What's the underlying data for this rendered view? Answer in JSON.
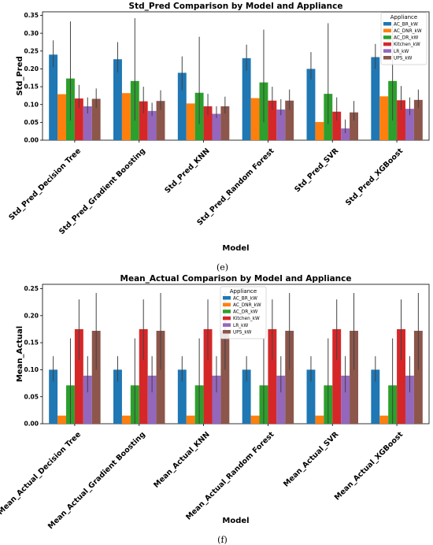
{
  "palette": {
    "AC_BR_kW": "#1f77b4",
    "AC_DNR_kW": "#ff7f0e",
    "AC_DR_kW": "#2ca02c",
    "Kitchen_kW": "#d62728",
    "LR_kW": "#9467bd",
    "UPS_kW": "#8c564b"
  },
  "chart_data": [
    {
      "type": "bar",
      "title": "Std_Pred Comparison by Model and Appliance",
      "xlabel": "Model",
      "ylabel": "Std_Pred",
      "ylim": [
        0,
        0.36
      ],
      "yticks": [
        "0.00",
        "0.05",
        "0.10",
        "0.15",
        "0.20",
        "0.25",
        "0.30",
        "0.35"
      ],
      "yticks_values": [
        0,
        0.05,
        0.1,
        0.15,
        0.2,
        0.25,
        0.3,
        0.35
      ],
      "legend_title": "Appliance",
      "legend_position": "top-right",
      "caption": "(e)",
      "categories": [
        "Std_Pred_Decision Tree",
        "Std_Pred_Gradient Boosting",
        "Std_Pred_KNN",
        "Std_Pred_Random Forest",
        "Std_Pred_SVR",
        "Std_Pred_XGBoost"
      ],
      "series": [
        {
          "name": "AC_BR_kW",
          "values": [
            0.24,
            0.227,
            0.189,
            0.23,
            0.2,
            0.233
          ],
          "err_low": [
            0.205,
            0.19,
            0.14,
            0.195,
            0.17,
            0.2
          ],
          "err_high": [
            0.28,
            0.275,
            0.235,
            0.268,
            0.247,
            0.27
          ]
        },
        {
          "name": "AC_DNR_kW",
          "values": [
            0.129,
            0.132,
            0.103,
            0.118,
            0.051,
            0.123
          ],
          "err_low": [
            0.129,
            0.132,
            0.103,
            0.118,
            0.051,
            0.123
          ],
          "err_high": [
            0.129,
            0.132,
            0.103,
            0.118,
            0.051,
            0.123
          ]
        },
        {
          "name": "AC_DR_kW",
          "values": [
            0.173,
            0.166,
            0.133,
            0.162,
            0.13,
            0.166
          ],
          "err_low": [
            0.055,
            0.055,
            0.045,
            0.05,
            0.045,
            0.055
          ],
          "err_high": [
            0.333,
            0.342,
            0.29,
            0.31,
            0.328,
            0.325
          ]
        },
        {
          "name": "Kitchen_kW",
          "values": [
            0.117,
            0.109,
            0.095,
            0.111,
            0.08,
            0.112
          ],
          "err_low": [
            0.09,
            0.075,
            0.07,
            0.085,
            0.055,
            0.085
          ],
          "err_high": [
            0.155,
            0.15,
            0.13,
            0.15,
            0.12,
            0.152
          ]
        },
        {
          "name": "LR_kW",
          "values": [
            0.095,
            0.082,
            0.074,
            0.086,
            0.033,
            0.088
          ],
          "err_low": [
            0.075,
            0.068,
            0.062,
            0.07,
            0.02,
            0.07
          ],
          "err_high": [
            0.12,
            0.105,
            0.095,
            0.115,
            0.058,
            0.12
          ]
        },
        {
          "name": "UPS_kW",
          "values": [
            0.116,
            0.11,
            0.095,
            0.111,
            0.078,
            0.113
          ],
          "err_low": [
            0.09,
            0.085,
            0.075,
            0.085,
            0.055,
            0.09
          ],
          "err_high": [
            0.145,
            0.14,
            0.122,
            0.142,
            0.11,
            0.142
          ]
        }
      ]
    },
    {
      "type": "bar",
      "title": "Mean_Actual Comparison by Model and Appliance",
      "xlabel": "Model",
      "ylabel": "Mean_Actual",
      "ylim": [
        0,
        0.258
      ],
      "yticks": [
        "0.00",
        "0.05",
        "0.10",
        "0.15",
        "0.20",
        "0.25"
      ],
      "yticks_values": [
        0,
        0.05,
        0.1,
        0.15,
        0.2,
        0.25
      ],
      "legend_title": "Appliance",
      "legend_position": "top-center",
      "caption": "(f)",
      "categories": [
        "Mean_Actual_Decision Tree",
        "Mean_Actual_Gradient Boosting",
        "Mean_Actual_KNN",
        "Mean_Actual_Random Forest",
        "Mean_Actual_SVR",
        "Mean_Actual_XGBoost"
      ],
      "series": [
        {
          "name": "AC_BR_kW",
          "values": [
            0.1,
            0.1,
            0.1,
            0.1,
            0.1,
            0.1
          ],
          "err_low": [
            0.078,
            0.078,
            0.078,
            0.078,
            0.078,
            0.078
          ],
          "err_high": [
            0.125,
            0.125,
            0.125,
            0.125,
            0.125,
            0.125
          ]
        },
        {
          "name": "AC_DNR_kW",
          "values": [
            0.015,
            0.015,
            0.015,
            0.015,
            0.015,
            0.015
          ],
          "err_low": [
            0.015,
            0.015,
            0.015,
            0.015,
            0.015,
            0.015
          ],
          "err_high": [
            0.015,
            0.015,
            0.015,
            0.015,
            0.015,
            0.015
          ]
        },
        {
          "name": "AC_DR_kW",
          "values": [
            0.071,
            0.071,
            0.071,
            0.071,
            0.071,
            0.071
          ],
          "err_low": [
            0.0,
            0.0,
            0.0,
            0.0,
            0.0,
            0.0
          ],
          "err_high": [
            0.158,
            0.158,
            0.158,
            0.158,
            0.158,
            0.158
          ]
        },
        {
          "name": "Kitchen_kW",
          "values": [
            0.175,
            0.175,
            0.175,
            0.175,
            0.175,
            0.175
          ],
          "err_low": [
            0.118,
            0.118,
            0.118,
            0.118,
            0.118,
            0.118
          ],
          "err_high": [
            0.23,
            0.23,
            0.23,
            0.23,
            0.23,
            0.23
          ]
        },
        {
          "name": "LR_kW",
          "values": [
            0.089,
            0.089,
            0.089,
            0.089,
            0.089,
            0.089
          ],
          "err_low": [
            0.058,
            0.058,
            0.058,
            0.058,
            0.058,
            0.058
          ],
          "err_high": [
            0.125,
            0.125,
            0.125,
            0.125,
            0.125,
            0.125
          ]
        },
        {
          "name": "UPS_kW",
          "values": [
            0.172,
            0.172,
            0.172,
            0.172,
            0.172,
            0.172
          ],
          "err_low": [
            0.1,
            0.1,
            0.1,
            0.1,
            0.1,
            0.1
          ],
          "err_high": [
            0.242,
            0.242,
            0.242,
            0.242,
            0.242,
            0.242
          ]
        }
      ]
    }
  ]
}
